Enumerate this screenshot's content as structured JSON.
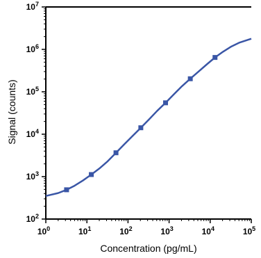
{
  "chart_data": {
    "type": "scatter",
    "title": "",
    "xlabel": "Concentration (pg/mL)",
    "ylabel": "Signal (counts)",
    "x_scale": "log",
    "y_scale": "log",
    "xlim": [
      1,
      100000
    ],
    "ylim": [
      100,
      10000000
    ],
    "grid": false,
    "legend": "none",
    "x_ticks": [
      1,
      10,
      100,
      1000,
      10000,
      100000
    ],
    "y_ticks": [
      100,
      1000,
      10000,
      100000,
      1000000,
      10000000
    ],
    "series": [
      {
        "type": "scatter",
        "color": "#3a56a6",
        "x": [
          3.2,
          12.8,
          51,
          205,
          820,
          3280,
          13100
        ],
        "y": [
          490,
          1120,
          3650,
          14200,
          55000,
          203000,
          645000
        ]
      },
      {
        "type": "line",
        "color": "#3a56a6",
        "x": [
          1,
          2,
          3.2,
          5,
          8,
          12.8,
          20,
          32,
          51,
          80,
          128,
          205,
          320,
          512,
          820,
          1300,
          2050,
          3280,
          5200,
          8200,
          13100,
          20500,
          32800,
          52000,
          100000
        ],
        "y": [
          350,
          410,
          490,
          610,
          810,
          1120,
          1550,
          2300,
          3650,
          5700,
          9000,
          14200,
          22000,
          35500,
          55000,
          87000,
          135000,
          203000,
          300000,
          440000,
          645000,
          880000,
          1170000,
          1450000,
          1780000
        ]
      }
    ]
  }
}
